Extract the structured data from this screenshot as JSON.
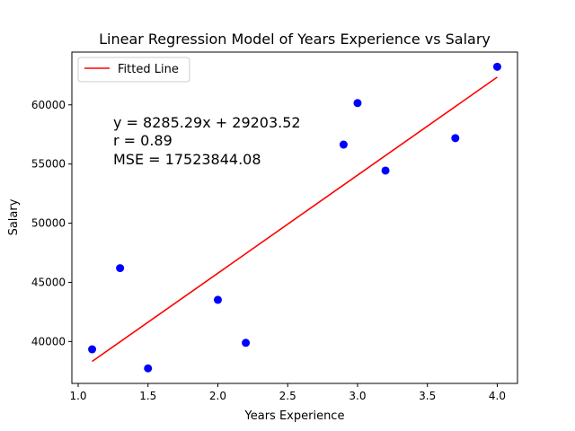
{
  "chart_data": {
    "type": "scatter",
    "title": "Linear Regression Model of Years Experience vs Salary",
    "xlabel": "Years Experience",
    "ylabel": "Salary",
    "xlim": [
      0.955,
      4.145
    ],
    "ylim": [
      36460,
      64460
    ],
    "xticks": [
      1.0,
      1.5,
      2.0,
      2.5,
      3.0,
      3.5,
      4.0
    ],
    "xtick_labels": [
      "1.0",
      "1.5",
      "2.0",
      "2.5",
      "3.0",
      "3.5",
      "4.0"
    ],
    "yticks": [
      40000,
      45000,
      50000,
      55000,
      60000
    ],
    "ytick_labels": [
      "40000",
      "45000",
      "50000",
      "55000",
      "60000"
    ],
    "grid": false,
    "legend_position": "top-left",
    "series": [
      {
        "type": "scatter",
        "color": "#0000ff",
        "x": [
          1.1,
          1.3,
          1.5,
          2.0,
          2.2,
          2.9,
          3.0,
          3.2,
          3.7,
          4.0
        ],
        "y": [
          39343,
          46205,
          37731,
          43525,
          39891,
          56642,
          60150,
          54445,
          57189,
          63218
        ]
      },
      {
        "type": "line",
        "name": "Fitted Line",
        "color": "#ff0000",
        "slope": 8285.29,
        "intercept": 29203.52,
        "x": [
          1.1,
          4.0
        ]
      }
    ],
    "annotations": [
      "y = 8285.29x + 29203.52",
      "r = 0.89",
      "MSE = 17523844.08"
    ]
  }
}
